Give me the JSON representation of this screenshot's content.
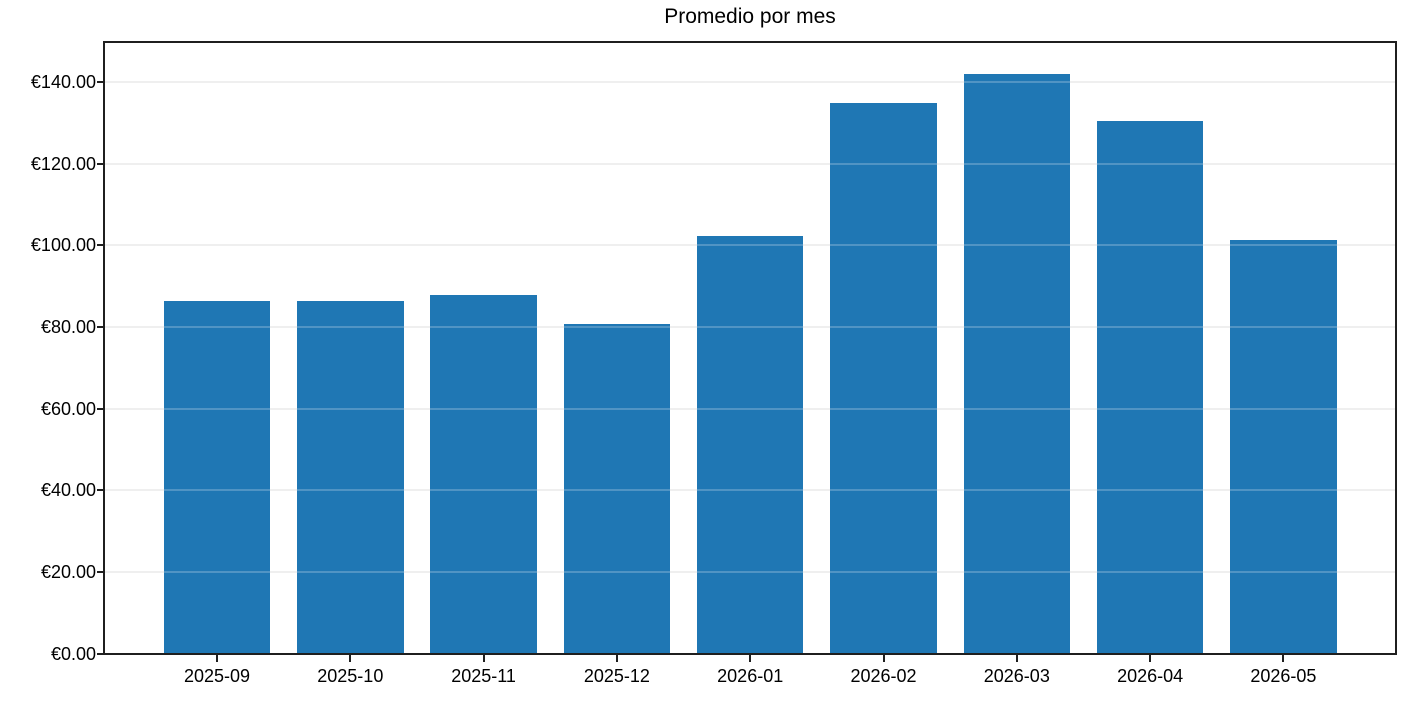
{
  "chart_data": {
    "type": "bar",
    "title": "Promedio por mes",
    "xlabel": "",
    "ylabel": "",
    "categories": [
      "2025-09",
      "2025-10",
      "2025-11",
      "2025-12",
      "2026-01",
      "2026-02",
      "2026-03",
      "2026-04",
      "2026-05"
    ],
    "values": [
      86.3,
      86.2,
      87.8,
      80.7,
      102.3,
      134.9,
      142.0,
      130.3,
      101.3
    ],
    "ylim": [
      0,
      149.6
    ],
    "ytick_values": [
      0,
      20,
      40,
      60,
      80,
      100,
      120,
      140
    ],
    "ytick_labels": [
      "€0.00",
      "€20.00",
      "€40.00",
      "€60.00",
      "€80.00",
      "€100.00",
      "€120.00",
      "€140.00"
    ],
    "grid": true,
    "legend_position": "none",
    "bar_color": "#1f77b4",
    "grid_color": "#ebebeb",
    "axis_color": "#1f1f1f"
  }
}
